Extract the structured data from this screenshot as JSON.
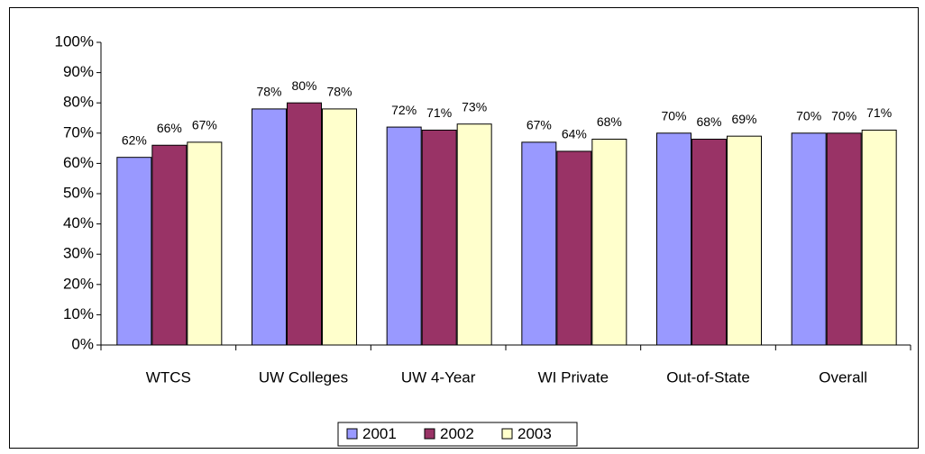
{
  "chart_data": {
    "type": "bar",
    "categories": [
      "WTCS",
      "UW Colleges",
      "UW 4-Year",
      "WI Private",
      "Out-of-State",
      "Overall"
    ],
    "series": [
      {
        "name": "2001",
        "color": "#9999ff",
        "values": [
          62,
          78,
          72,
          67,
          70,
          70
        ],
        "value_labels": [
          "62%",
          "78%",
          "72%",
          "67%",
          "70%",
          "70%"
        ]
      },
      {
        "name": "2002",
        "color": "#993366",
        "values": [
          66,
          80,
          71,
          64,
          68,
          70
        ],
        "value_labels": [
          "66%",
          "80%",
          "71%",
          "64%",
          "68%",
          "70%"
        ]
      },
      {
        "name": "2003",
        "color": "#ffffcc",
        "values": [
          67,
          78,
          73,
          68,
          69,
          71
        ],
        "value_labels": [
          "67%",
          "78%",
          "73%",
          "68%",
          "69%",
          "71%"
        ]
      }
    ],
    "ylim": [
      0,
      100
    ],
    "yticks": [
      {
        "value": 0,
        "label": "0%"
      },
      {
        "value": 10,
        "label": "10%"
      },
      {
        "value": 20,
        "label": "20%"
      },
      {
        "value": 30,
        "label": "30%"
      },
      {
        "value": 40,
        "label": "40%"
      },
      {
        "value": 50,
        "label": "50%"
      },
      {
        "value": 60,
        "label": "60%"
      },
      {
        "value": 70,
        "label": "70%"
      },
      {
        "value": 80,
        "label": "80%"
      },
      {
        "value": 90,
        "label": "90%"
      },
      {
        "value": 100,
        "label": "100%"
      }
    ],
    "grid": false,
    "legend": "bottom"
  }
}
